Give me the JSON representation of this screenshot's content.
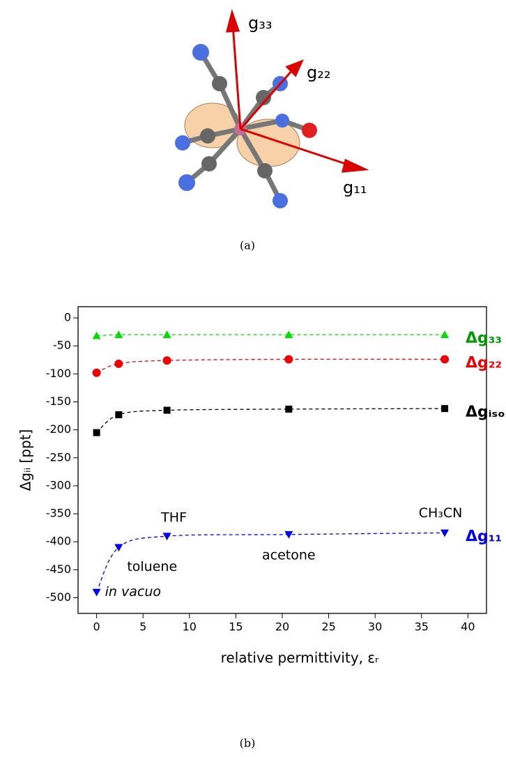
{
  "molecule": {
    "axis_labels": [
      "g₃₃",
      "g₂₂",
      "g₁₁"
    ]
  },
  "captions": [
    "(a)",
    "(b)"
  ],
  "chart_data": {
    "type": "scatter",
    "xlabel": "relative permittivity, εᵣ",
    "ylabel": "Δgᵢᵢ [ppt]",
    "x": [
      0,
      2.38,
      7.58,
      20.7,
      37.5
    ],
    "point_labels": [
      "in vacuo",
      "toluene",
      "THF",
      "acetone",
      "CH₃CN"
    ],
    "series": [
      {
        "name": "Δg₃₃",
        "color": "#00dd00",
        "marker": "triangle-up",
        "values": [
          -32,
          -30,
          -30,
          -30,
          -30
        ]
      },
      {
        "name": "Δg₂₂",
        "color": "#ee0000",
        "marker": "circle",
        "values": [
          -98,
          -82,
          -76,
          -74,
          -74
        ]
      },
      {
        "name": "Δgᵢₛₒ",
        "color": "#000000",
        "marker": "square",
        "values": [
          -205,
          -173,
          -165,
          -163,
          -162
        ]
      },
      {
        "name": "Δg₁₁",
        "color": "#0000ee",
        "marker": "triangle-down",
        "values": [
          -490,
          -410,
          -390,
          -387,
          -384
        ]
      }
    ],
    "xlim": [
      -2,
      42
    ],
    "xticks": [
      0,
      5,
      10,
      15,
      20,
      25,
      30,
      35,
      40
    ],
    "ylim": [
      -528,
      20
    ],
    "yticks": [
      0,
      -50,
      -100,
      -150,
      -200,
      -250,
      -300,
      -350,
      -400,
      -450,
      -500
    ]
  }
}
